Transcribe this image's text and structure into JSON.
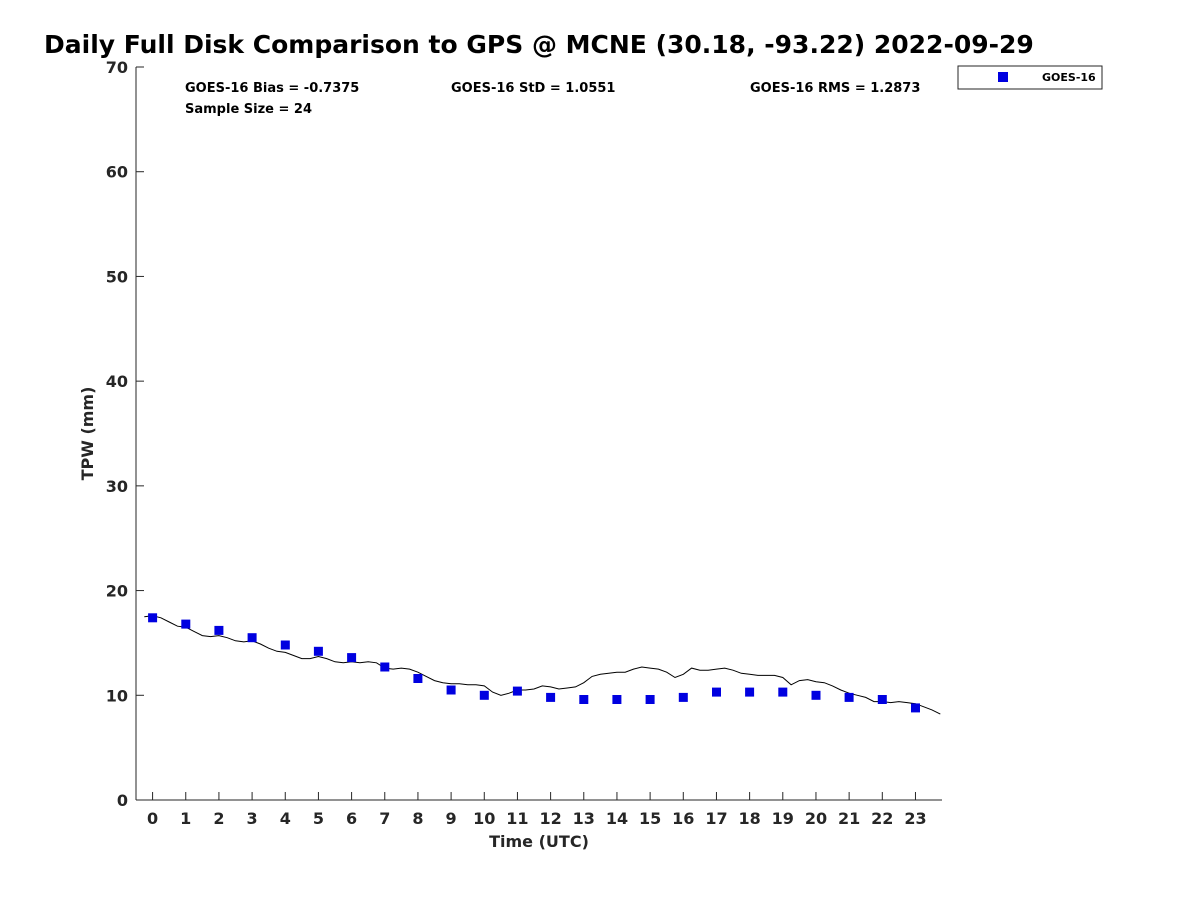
{
  "chart_data": {
    "type": "scatter",
    "title": "Daily Full Disk Comparison to GPS @ MCNE (30.18, -93.22) 2022-09-29",
    "xlabel": "Time (UTC)",
    "ylabel": "TPW (mm)",
    "xlim": [
      -0.5,
      23.8
    ],
    "ylim": [
      0,
      70
    ],
    "x_ticks": [
      0,
      1,
      2,
      3,
      4,
      5,
      6,
      7,
      8,
      9,
      10,
      11,
      12,
      13,
      14,
      15,
      16,
      17,
      18,
      19,
      20,
      21,
      22,
      23
    ],
    "y_ticks": [
      0,
      10,
      20,
      30,
      40,
      50,
      60,
      70
    ],
    "grid": false,
    "legend_position": "top-right (outside plot)",
    "stats": {
      "bias": "GOES-16 Bias = -0.7375",
      "std": "GOES-16 StD = 1.0551",
      "rms": "GOES-16 RMS = 1.2873",
      "sample_size": "Sample Size = 24"
    },
    "series": [
      {
        "name": "GOES-16",
        "kind": "markers",
        "color": "#0000e0",
        "x": [
          0,
          1,
          2,
          3,
          4,
          5,
          6,
          7,
          8,
          9,
          10,
          11,
          12,
          13,
          14,
          15,
          16,
          17,
          18,
          19,
          20,
          21,
          22,
          23
        ],
        "y": [
          17.4,
          16.8,
          16.2,
          15.5,
          14.8,
          14.2,
          13.6,
          12.7,
          11.6,
          10.5,
          10.0,
          10.4,
          9.8,
          9.6,
          9.6,
          9.6,
          9.8,
          10.3,
          10.3,
          10.3,
          10.0,
          9.8,
          9.6,
          8.8
        ]
      },
      {
        "kind": "line",
        "color": "#000000",
        "x": [
          -0.25,
          0,
          0.25,
          0.5,
          0.75,
          1,
          1.25,
          1.5,
          1.75,
          2,
          2.25,
          2.5,
          2.75,
          3,
          3.25,
          3.5,
          3.75,
          4,
          4.25,
          4.5,
          4.75,
          5,
          5.25,
          5.5,
          5.75,
          6,
          6.25,
          6.5,
          6.75,
          7,
          7.25,
          7.5,
          7.75,
          8,
          8.25,
          8.5,
          8.75,
          9,
          9.25,
          9.5,
          9.75,
          10,
          10.25,
          10.5,
          10.75,
          11,
          11.25,
          11.5,
          11.75,
          12,
          12.25,
          12.5,
          12.75,
          13,
          13.25,
          13.5,
          13.75,
          14,
          14.25,
          14.5,
          14.75,
          15,
          15.25,
          15.5,
          15.75,
          16,
          16.25,
          16.5,
          16.75,
          17,
          17.25,
          17.5,
          17.75,
          18,
          18.25,
          18.5,
          18.75,
          19,
          19.25,
          19.5,
          19.75,
          20,
          20.25,
          20.5,
          20.75,
          21,
          21.25,
          21.5,
          21.75,
          22,
          22.25,
          22.5,
          22.75,
          23,
          23.25,
          23.5,
          23.75
        ],
        "y": [
          17.5,
          17.6,
          17.4,
          17.0,
          16.6,
          16.5,
          16.1,
          15.7,
          15.6,
          15.7,
          15.5,
          15.2,
          15.1,
          15.2,
          14.9,
          14.5,
          14.2,
          14.1,
          13.8,
          13.5,
          13.5,
          13.7,
          13.5,
          13.2,
          13.1,
          13.2,
          13.1,
          13.2,
          13.1,
          12.6,
          12.5,
          12.6,
          12.5,
          12.2,
          11.8,
          11.4,
          11.2,
          11.1,
          11.1,
          11.0,
          11.0,
          10.9,
          10.3,
          10.0,
          10.2,
          10.5,
          10.5,
          10.6,
          10.9,
          10.8,
          10.6,
          10.7,
          10.8,
          11.2,
          11.8,
          12.0,
          12.1,
          12.2,
          12.2,
          12.5,
          12.7,
          12.6,
          12.5,
          12.2,
          11.7,
          12.0,
          12.6,
          12.4,
          12.4,
          12.5,
          12.6,
          12.4,
          12.1,
          12.0,
          11.9,
          11.9,
          11.9,
          11.7,
          11.0,
          11.4,
          11.5,
          11.3,
          11.2,
          10.9,
          10.5,
          10.2,
          10.0,
          9.8,
          9.4,
          9.4,
          9.3,
          9.4,
          9.3,
          9.2,
          8.9,
          8.6,
          8.2
        ]
      }
    ]
  }
}
